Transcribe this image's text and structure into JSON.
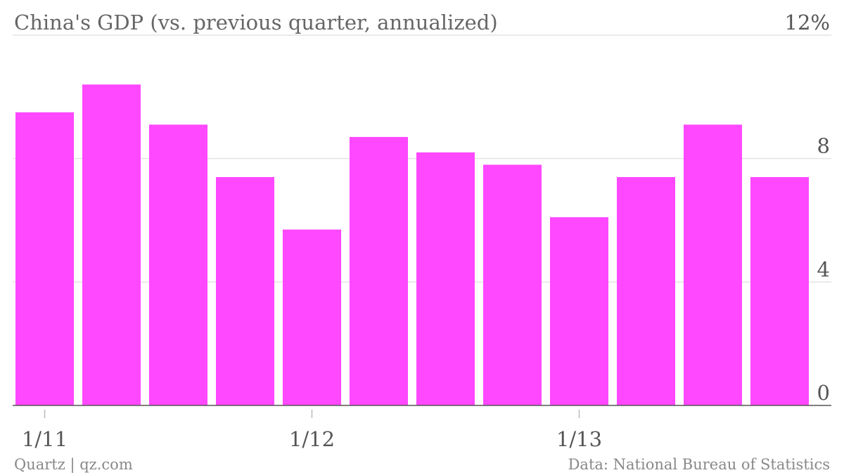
{
  "chart_data": {
    "type": "bar",
    "title": "China's GDP (vs. previous quarter, annualized)",
    "categories": [
      "Q1 2011",
      "Q2 2011",
      "Q3 2011",
      "Q4 2011",
      "Q1 2012",
      "Q2 2012",
      "Q3 2012",
      "Q4 2012",
      "Q1 2013",
      "Q2 2013",
      "Q3 2013",
      "Q4 2013"
    ],
    "values": [
      9.5,
      10.4,
      9.1,
      7.4,
      5.7,
      8.7,
      8.2,
      7.8,
      6.1,
      7.4,
      9.1,
      7.4
    ],
    "ylim": [
      0,
      12
    ],
    "y_ticks": [
      {
        "value": 12,
        "label": "12%"
      },
      {
        "value": 8,
        "label": "8"
      },
      {
        "value": 4,
        "label": "4"
      },
      {
        "value": 0,
        "label": "0"
      }
    ],
    "x_tick_labels": [
      {
        "index": 0,
        "label": "1/11"
      },
      {
        "index": 4,
        "label": "1/12"
      },
      {
        "index": 8,
        "label": "1/13"
      }
    ],
    "y_axis_position": "right",
    "grid": true,
    "bar_color": "#ff48ff"
  },
  "footer": {
    "source_left": "Quartz | qz.com",
    "source_right": "Data: National Bureau of Statistics"
  }
}
